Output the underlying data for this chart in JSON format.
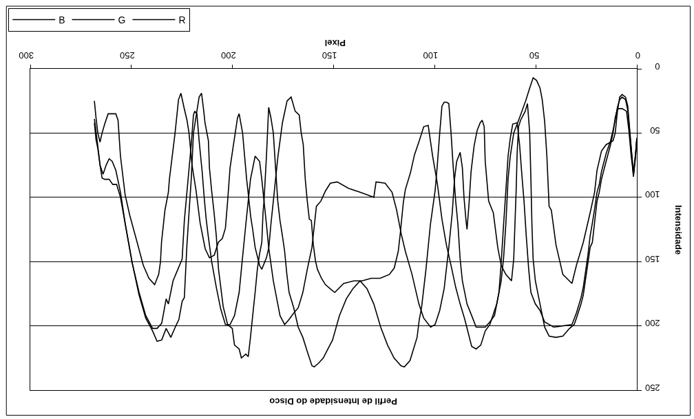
{
  "chart_data": {
    "type": "line",
    "title": "Perfil de Intensidade do Disco",
    "xlabel": "Pixel",
    "ylabel": "Intensidade",
    "xlim": [
      300,
      0
    ],
    "xticks": [
      0,
      50,
      100,
      150,
      200,
      250,
      300
    ],
    "ylim": [
      250,
      0
    ],
    "yticks": [
      0,
      50,
      100,
      150,
      200,
      250
    ],
    "grid": "y",
    "legend": "top left",
    "series": [
      {
        "name": "R",
        "color": "#000000",
        "x": [
          0,
          0.6,
          1.7,
          2.3,
          3.4,
          4.5,
          5.6,
          7.3,
          8.5,
          9.6,
          10.7,
          11.8,
          15.2,
          17.5,
          19.7,
          20.9,
          23.1,
          26.5,
          29.9,
          32.1,
          36.6,
          40,
          42.3,
          43.4,
          44.5,
          45.6,
          46.8,
          47.9,
          49.6,
          51.3,
          53,
          55,
          58,
          60.9,
          62.6,
          63.7,
          64.8,
          65.9,
          67.1,
          69.3,
          72.7,
          75,
          77.2,
          79.5,
          81.7,
          85.1,
          87.4,
          89.6,
          91.9,
          94.2,
          96.4,
          98.7,
          101,
          103.2,
          105.4,
          107.6,
          110,
          112,
          114.5,
          115.5,
          117,
          118,
          120,
          122.4,
          127,
          131.4,
          136,
          140,
          145,
          149.4,
          151,
          154,
          156,
          158,
          159,
          160,
          161,
          162,
          163,
          164,
          165,
          166,
          167,
          169,
          171,
          173,
          175.3,
          177.5,
          178.7,
          179.8,
          181,
          182,
          183.2,
          185.5,
          186.6,
          188.8,
          190,
          191,
          192,
          193,
          194,
          195,
          196.7,
          197.5,
          199.5,
          201.2,
          202.4,
          203.5,
          205,
          207,
          209,
          211.4,
          213.5,
          216,
          218,
          220,
          221.5,
          222.5,
          224,
          225.5,
          226.7,
          228.4,
          231.2,
          231.7,
          233.4,
          235.1,
          235.6,
          236.5,
          238.5,
          241.3,
          244.1,
          247.5,
          250.8,
          253.1,
          255.4,
          256.6,
          257.7,
          259.8,
          261.5,
          263.2,
          264.5,
          265.5,
          266.6,
          267.5,
          268.3
        ],
        "values": [
          54,
          68,
          84,
          71,
          50,
          29,
          22,
          20,
          22,
          33,
          50,
          56,
          59,
          64,
          79,
          96,
          112,
          135,
          153,
          167,
          160,
          137,
          110,
          107,
          68,
          41,
          24,
          15,
          9,
          7,
          15,
          25,
          38,
          50,
          68,
          86,
          121,
          147,
          165,
          183,
          199,
          204,
          215,
          218,
          216,
          195,
          183,
          170,
          153,
          137,
          117,
          89,
          68,
          44,
          45,
          56,
          67,
          81,
          94,
          104,
          128,
          142,
          155,
          160,
          163,
          163,
          165,
          165,
          167,
          174,
          172,
          168,
          163,
          156,
          149,
          137,
          118,
          117,
          103,
          86,
          59,
          50,
          36,
          33,
          22,
          25,
          42,
          68,
          86,
          103,
          121,
          139,
          147,
          156,
          153,
          139,
          125,
          115,
          100,
          86,
          68,
          50,
          35,
          38,
          59,
          77,
          103,
          124,
          132,
          135,
          145,
          147,
          140,
          120,
          95,
          75,
          50,
          40,
          30,
          19,
          24,
          50,
          86,
          96,
          110,
          135,
          150,
          160,
          168,
          163,
          153,
          133,
          114,
          98,
          68,
          40,
          35,
          35,
          35,
          43,
          50,
          57,
          50,
          38,
          25
        ]
      },
      {
        "name": "G",
        "color": "#000000",
        "x": [
          0,
          0.6,
          1.7,
          2.8,
          4,
          5.1,
          7.3,
          9.6,
          10.7,
          11.8,
          13,
          15.2,
          17.5,
          18.6,
          19.7,
          20.8,
          22,
          23.1,
          24.2,
          26.5,
          27.6,
          29.9,
          31,
          33.3,
          36.6,
          40.1,
          43.4,
          45.6,
          47.9,
          50.2,
          51.3,
          51.9,
          52.4,
          53,
          54.1,
          55.2,
          57.5,
          58.5,
          59.2,
          59.7,
          60.3,
          60.9,
          62,
          64.8,
          67.1,
          68.8,
          71,
          73.3,
          75,
          75.5,
          76.5,
          77.5,
          79,
          80.5,
          82,
          83,
          84,
          84.5,
          85.5,
          86.3,
          87.4,
          89.1,
          90.2,
          91.3,
          93,
          95.3,
          97.5,
          99.8,
          102,
          105.4,
          107.8,
          111.2,
          114.5,
          116.6,
          118.8,
          121.1,
          124.5,
          129,
          130.1,
          133.5,
          137,
          142.6,
          148.2,
          151.6,
          154,
          156.3,
          158.5,
          160.7,
          163,
          165.2,
          167.5,
          169.7,
          172,
          174.2,
          176.5,
          178.7,
          179.8,
          182.1,
          183.2,
          184.4,
          185.5,
          186.6,
          188.8,
          191.1,
          193.4,
          195.6,
          196.7,
          199,
          201.2,
          203.5,
          205.8,
          208,
          210.3,
          212,
          213,
          214,
          215,
          216.5,
          217.6,
          218.7,
          219.3,
          220.4,
          223.8,
          224.9,
          229.4,
          231.7,
          232.8,
          235,
          237.3,
          239.5,
          242.9,
          246.2,
          249.6,
          253,
          255.4,
          257.7,
          259.5,
          261,
          262.5,
          264,
          265.5,
          267,
          268.3
        ],
        "values": [
          54,
          65,
          82,
          68,
          47,
          33,
          31,
          31,
          38,
          50,
          59,
          72,
          86,
          96,
          103,
          118,
          135,
          139,
          151,
          176,
          183,
          194,
          199,
          202,
          208,
          209,
          208,
          201,
          183,
          165,
          148,
          121,
          86,
          50,
          27,
          33,
          40,
          45,
          65,
          95,
          121,
          148,
          165,
          160,
          153,
          139,
          112,
          103,
          72,
          45,
          40,
          42,
          48,
          60,
          80,
          105,
          125,
          118,
          100,
          77,
          65,
          72,
          86,
          112,
          139,
          171,
          188,
          199,
          201,
          194,
          183,
          160,
          142,
          128,
          110,
          96,
          89,
          88,
          100,
          98,
          96,
          93,
          88,
          89,
          95,
          103,
          107,
          139,
          156,
          174,
          186,
          190,
          195,
          199,
          192,
          174,
          165,
          139,
          121,
          103,
          86,
          72,
          68,
          86,
          121,
          156,
          174,
          192,
          199,
          199,
          187,
          170,
          150,
          130,
          117,
          100,
          80,
          56,
          35,
          33,
          36,
          59,
          118,
          148,
          165,
          183,
          179,
          198,
          202,
          202,
          192,
          174,
          151,
          121,
          96,
          79,
          72,
          70,
          75,
          82,
          75,
          55,
          39
        ]
      },
      {
        "name": "B",
        "color": "#000000",
        "x": [
          0,
          0.6,
          1.7,
          2.3,
          3.4,
          4.5,
          5.6,
          7.3,
          8.5,
          9.6,
          10.7,
          11.8,
          13,
          15.2,
          17.5,
          18.6,
          19.7,
          20.8,
          22,
          23.1,
          24.2,
          26.5,
          27.6,
          29.9,
          32.1,
          36.6,
          41.1,
          45.6,
          47.9,
          50.2,
          52.4,
          53.5,
          54.7,
          55.8,
          56.9,
          58,
          59.2,
          61.4,
          62.6,
          63.7,
          64.8,
          65.9,
          67.1,
          68.2,
          70.4,
          72.7,
          75,
          79.5,
          81.7,
          84,
          86.3,
          87.4,
          88.5,
          89.6,
          90.8,
          91.9,
          93,
          94.1,
          95.3,
          96.4,
          97.5,
          98.8,
          99.8,
          102.1,
          104.3,
          106.5,
          107.6,
          108.7,
          112.2,
          115,
          116.7,
          120.1,
          123.3,
          126.7,
          130.1,
          133.5,
          136.9,
          140.4,
          143.7,
          147.1,
          150.5,
          155.1,
          157.4,
          159.6,
          160.7,
          163,
          165.2,
          167.5,
          169.7,
          172,
          173.1,
          174.2,
          175.3,
          176.5,
          177.6,
          178.7,
          179.8,
          181,
          182.1,
          183.2,
          184.4,
          184.9,
          185.5,
          186.6,
          187.7,
          188.8,
          190,
          191.1,
          192.2,
          193.4,
          195.6,
          196.7,
          199,
          200.1,
          202.4,
          204.6,
          206.9,
          208,
          209.1,
          210.3,
          211.4,
          211.9,
          213.6,
          214.2,
          215.3,
          216.5,
          217.6,
          219.3,
          220.4,
          221.5,
          222.6,
          223.8,
          224.9,
          226.5,
          228.3,
          230.5,
          232.8,
          235,
          237.3,
          239.5,
          242.9,
          246.2,
          249.6,
          253,
          255.4,
          257.3,
          259.2,
          261,
          263.2,
          264.5,
          265.5,
          266.6,
          267.5,
          268.3
        ],
        "values": [
          54,
          66,
          83,
          70,
          52,
          32,
          24,
          22,
          24,
          30,
          40,
          48,
          56,
          66,
          80,
          90,
          96,
          108,
          120,
          130,
          145,
          170,
          178,
          190,
          199,
          200,
          201,
          197,
          188,
          183,
          174,
          156,
          130,
          103,
          82,
          59,
          42,
          43,
          54,
          68,
          95,
          121,
          151,
          174,
          192,
          197,
          201,
          201,
          192,
          183,
          165,
          148,
          121,
          103,
          77,
          50,
          27,
          26,
          26,
          29,
          50,
          77,
          95,
          121,
          156,
          186,
          195,
          209,
          227,
          232,
          231,
          225,
          215,
          201,
          183,
          171,
          165,
          171,
          179,
          192,
          211,
          225,
          229,
          232,
          231,
          220,
          209,
          201,
          186,
          174,
          160,
          142,
          130,
          118,
          103,
          77,
          50,
          38,
          30,
          68,
          103,
          112,
          135,
          144,
          156,
          174,
          192,
          209,
          224,
          222,
          225,
          218,
          215,
          202,
          199,
          185,
          156,
          130,
          112,
          95,
          77,
          56,
          42,
          33,
          19,
          22,
          33,
          50,
          86,
          112,
          139,
          178,
          181,
          195,
          201,
          209,
          202,
          211,
          212,
          204,
          194,
          176,
          151,
          121,
          100,
          90,
          90,
          86,
          86,
          85,
          75,
          62,
          55,
          42
        ]
      }
    ]
  }
}
